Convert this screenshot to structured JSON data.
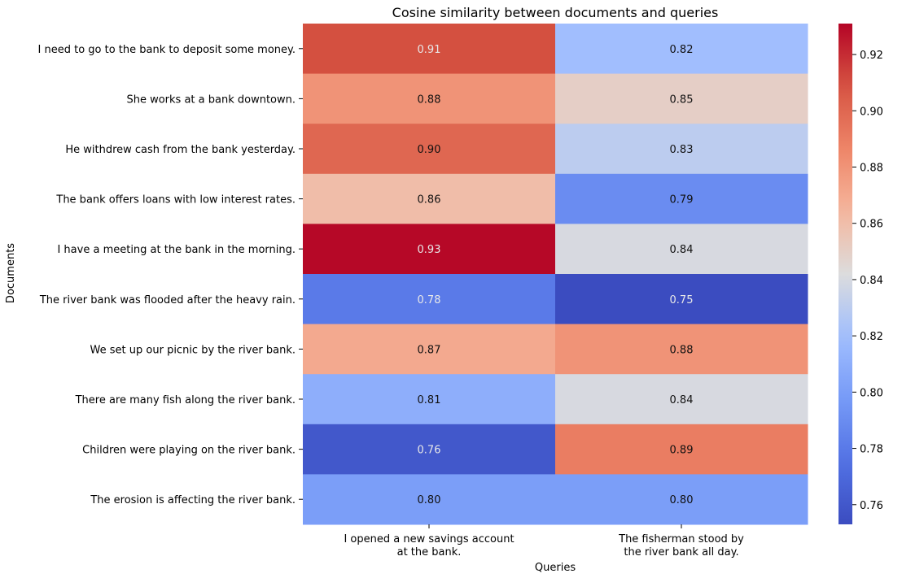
{
  "chart_data": {
    "type": "heatmap",
    "title": "Cosine similarity between documents and queries",
    "xlabel": "Queries",
    "ylabel": "Documents",
    "x_categories": [
      [
        "I opened a new savings account",
        "at the bank."
      ],
      [
        "The fisherman stood by",
        "the river bank all day."
      ]
    ],
    "y_categories": [
      "I need to go to the bank to deposit some money.",
      "She works at a bank downtown.",
      "He withdrew cash from the bank yesterday.",
      "The bank offers loans with low interest rates.",
      "I have a meeting at the bank in the morning.",
      "The river bank was flooded after the heavy rain.",
      "We set up our picnic by the river bank.",
      "There are many fish along the river bank.",
      "Children were playing on the river bank.",
      "The erosion is affecting the river bank."
    ],
    "values": [
      [
        0.91,
        0.82
      ],
      [
        0.88,
        0.85
      ],
      [
        0.9,
        0.83
      ],
      [
        0.86,
        0.79
      ],
      [
        0.93,
        0.84
      ],
      [
        0.78,
        0.75
      ],
      [
        0.87,
        0.88
      ],
      [
        0.81,
        0.84
      ],
      [
        0.76,
        0.89
      ],
      [
        0.8,
        0.8
      ]
    ],
    "annotation_format": "0.00",
    "colormap": "coolwarm",
    "colorbar": {
      "range": [
        0.753,
        0.931
      ],
      "ticks": [
        "0.76",
        "0.78",
        "0.80",
        "0.82",
        "0.84",
        "0.86",
        "0.88",
        "0.90",
        "0.92"
      ],
      "placement": "right"
    },
    "grid": false
  }
}
